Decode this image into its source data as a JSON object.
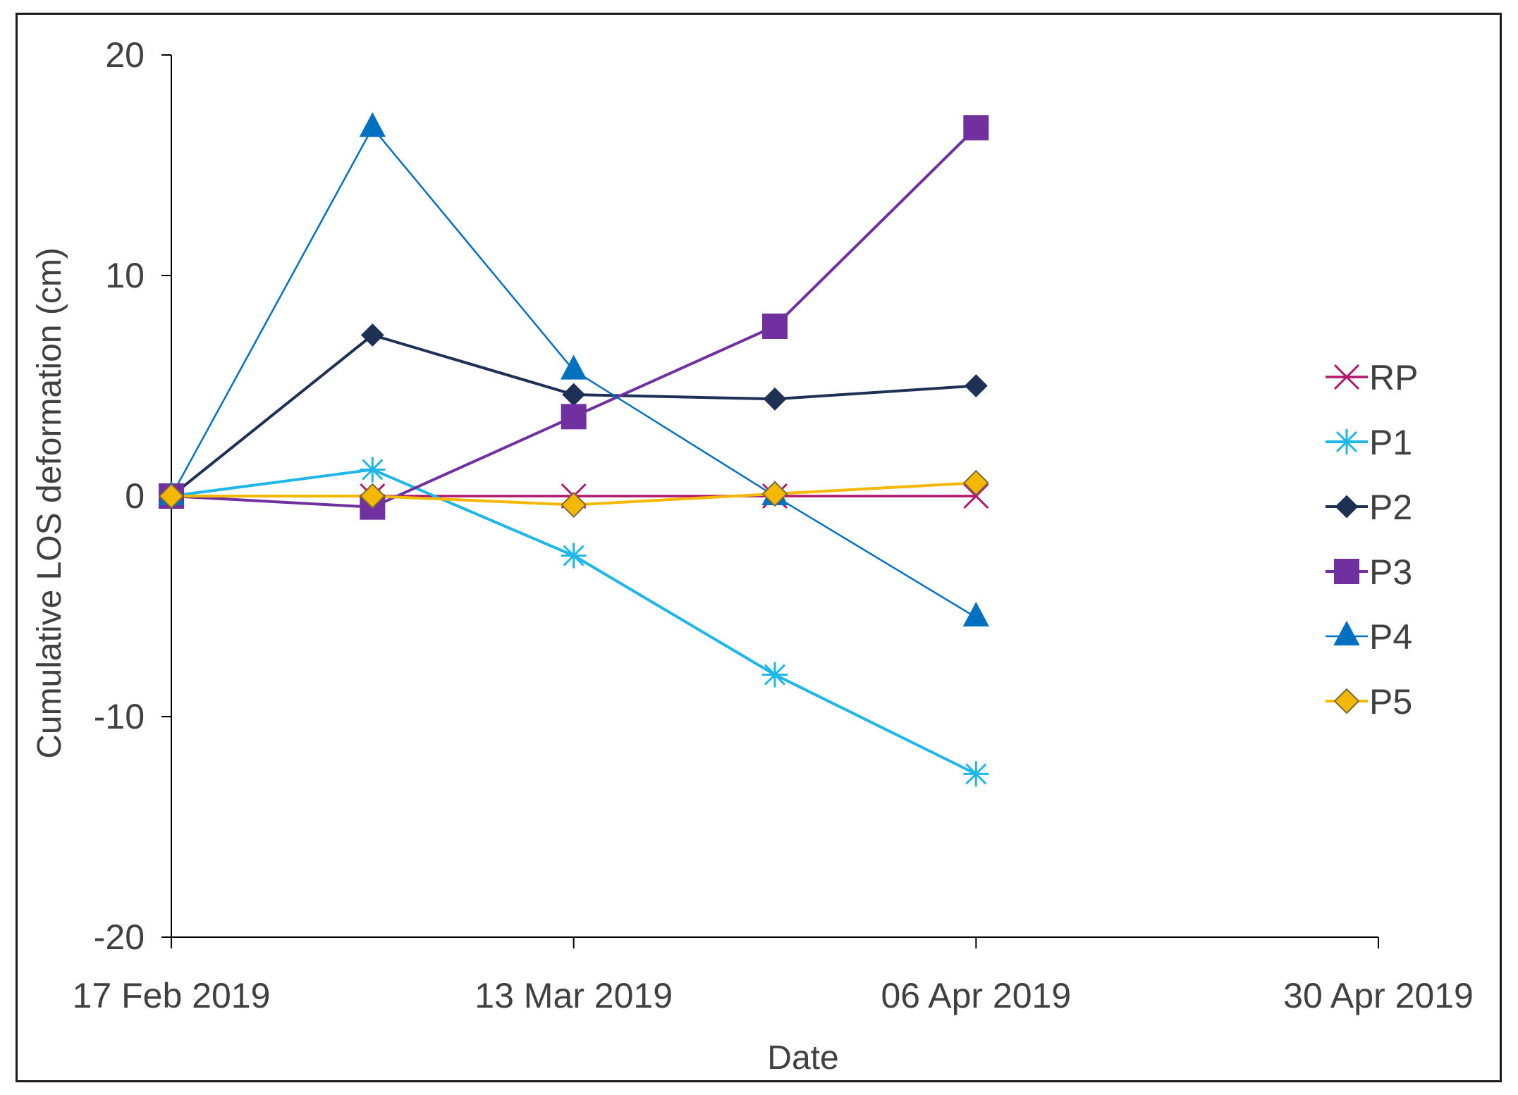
{
  "chart_data": {
    "type": "line",
    "title": "",
    "xlabel": "Date",
    "ylabel": "Cumulative LOS deformation (cm)",
    "ylim": [
      -20,
      20
    ],
    "yticks": [
      20,
      10,
      0,
      -10,
      -20
    ],
    "xlim_days": [
      0,
      72
    ],
    "x_ticks": [
      {
        "day": 0,
        "label": "17 Feb 2019"
      },
      {
        "day": 24,
        "label": "13 Mar 2019"
      },
      {
        "day": 48,
        "label": "06 Apr 2019"
      },
      {
        "day": 72,
        "label": "30 Apr 2019"
      }
    ],
    "x_days": [
      0,
      12,
      24,
      36,
      48
    ],
    "grid": false,
    "legend_position": "right",
    "series": [
      {
        "name": "RP",
        "color": "#B0176B",
        "marker": "x",
        "values": [
          0,
          0,
          0,
          0,
          0
        ]
      },
      {
        "name": "P1",
        "color": "#1FB7E8",
        "marker": "star",
        "values": [
          0,
          1.2,
          -2.7,
          -8.1,
          -12.6
        ]
      },
      {
        "name": "P2",
        "color": "#1F3055",
        "marker": "diamond",
        "values": [
          0,
          7.3,
          4.6,
          4.4,
          5.0
        ]
      },
      {
        "name": "P3",
        "color": "#7030A0",
        "marker": "square",
        "values": [
          0,
          -0.5,
          3.6,
          7.7,
          16.7
        ]
      },
      {
        "name": "P4",
        "color": "#0070C0",
        "marker": "triangle",
        "values": [
          0,
          16.7,
          5.7,
          0,
          -5.5
        ]
      },
      {
        "name": "P5",
        "color": "#F5B800",
        "marker": "diamond-gold",
        "values": [
          0,
          0,
          -0.4,
          0.1,
          0.6
        ]
      }
    ]
  }
}
